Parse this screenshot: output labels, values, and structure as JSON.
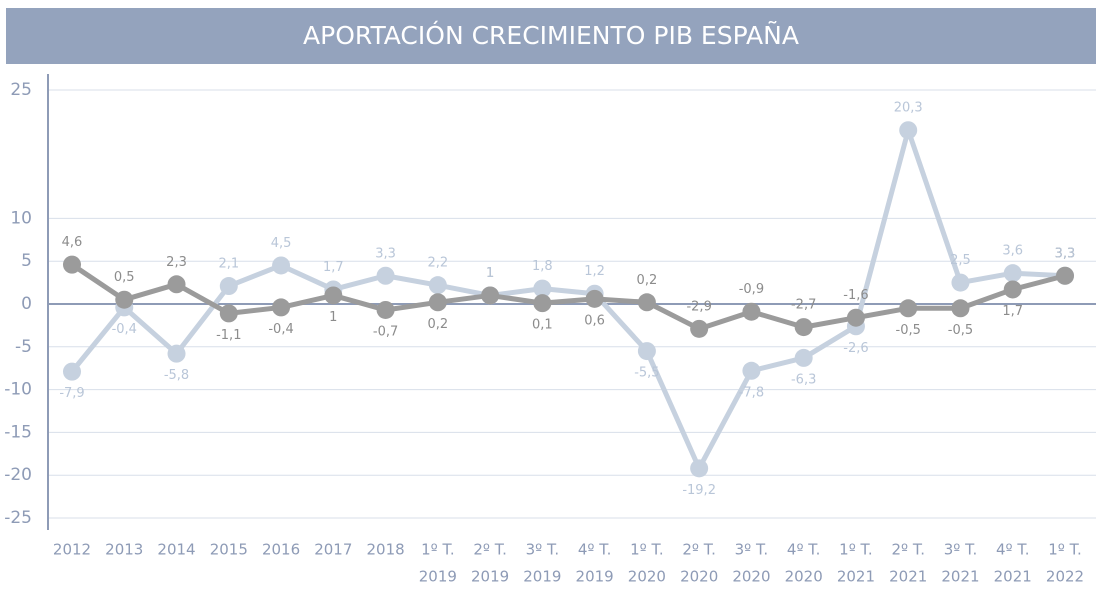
{
  "chart_data": {
    "type": "line",
    "title": "APORTACIÓN CRECIMIENTO PIB ESPAÑA",
    "categories": [
      [
        "2012"
      ],
      [
        "2013"
      ],
      [
        "2014"
      ],
      [
        "2015"
      ],
      [
        "2016"
      ],
      [
        "2017"
      ],
      [
        "2018"
      ],
      [
        "1º T.",
        "2019"
      ],
      [
        "2º T.",
        "2019"
      ],
      [
        "3º T.",
        "2019"
      ],
      [
        "4º T.",
        "2019"
      ],
      [
        "1º T.",
        "2020"
      ],
      [
        "2º T.",
        "2020"
      ],
      [
        "3º T.",
        "2020"
      ],
      [
        "4º T.",
        "2020"
      ],
      [
        "1º T.",
        "2021"
      ],
      [
        "2º T.",
        "2021"
      ],
      [
        "3º T.",
        "2021"
      ],
      [
        "4º T.",
        "2021"
      ],
      [
        "1º T.",
        "2022"
      ]
    ],
    "series": [
      {
        "color": "#9b9b9b",
        "values": [
          4.6,
          0.5,
          2.3,
          -1.1,
          -0.4,
          1,
          -0.7,
          0.2,
          1,
          0.1,
          0.6,
          0.2,
          -2.9,
          -0.9,
          -2.7,
          -1.6,
          -0.5,
          -0.5,
          1.7,
          3.3
        ],
        "value_labels": [
          "4,6",
          "0,5",
          "2,3",
          "-1,1",
          "-0,4",
          "1",
          "-0,7",
          "0,2",
          "1",
          "0,1",
          "0,6",
          "0,2",
          "-2,9",
          "-0,9",
          "-2,7",
          "-1,6",
          "-0,5",
          "-0,5",
          "1,7",
          "3,3"
        ]
      },
      {
        "color": "#c6d1df",
        "values": [
          -7.9,
          -0.4,
          -5.8,
          2.1,
          4.5,
          1.7,
          3.3,
          2.2,
          1,
          1.8,
          1.2,
          -5.5,
          -19.2,
          -7.8,
          -6.3,
          -2.6,
          20.3,
          2.5,
          3.6,
          3.3
        ],
        "value_labels": [
          "-7,9",
          "-0,4",
          "-5,8",
          "2,1",
          "4,5",
          "1,7",
          "3,3",
          "2,2",
          "1",
          "1,8",
          "1,2",
          "-5,5",
          "-19,2",
          "-7,8",
          "-6,3",
          "-2,6",
          "20,3",
          "2,5",
          "3,6",
          "3,3"
        ]
      }
    ],
    "ylim": [
      -25,
      25
    ],
    "yticks": [
      25,
      10,
      5,
      0,
      -5,
      -10,
      -15,
      -20,
      -25
    ],
    "grid": true
  }
}
